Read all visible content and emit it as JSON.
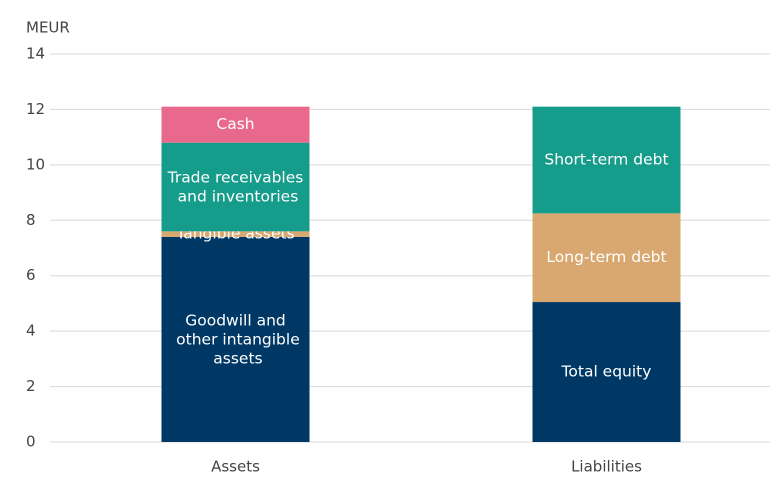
{
  "chart_data": {
    "type": "stacked_bar",
    "y_label": "MEUR",
    "categories": [
      "Assets",
      "Liabilities"
    ],
    "series": [
      {
        "name": "Goodwill and other intangible assets",
        "color": "#003865",
        "values": [
          7.4,
          null
        ]
      },
      {
        "name": "Tangible assets",
        "color": "#d9a870",
        "values": [
          0.2,
          null
        ]
      },
      {
        "name": "Trade receivables and inventories",
        "color": "#169c8a",
        "values": [
          3.2,
          null
        ]
      },
      {
        "name": "Cash",
        "color": "#e8698b",
        "values": [
          1.3,
          null
        ]
      },
      {
        "name": "Total equity",
        "color": "#003865",
        "values": [
          null,
          5.05
        ]
      },
      {
        "name": "Long-term debt",
        "color": "#d9a870",
        "values": [
          null,
          3.2
        ]
      },
      {
        "name": "Short-term debt",
        "color": "#169c8a",
        "values": [
          null,
          3.85
        ]
      }
    ],
    "ylim": [
      0,
      14
    ],
    "yticks": [
      0,
      2,
      4,
      6,
      8,
      10,
      12,
      14
    ],
    "grid": true
  }
}
